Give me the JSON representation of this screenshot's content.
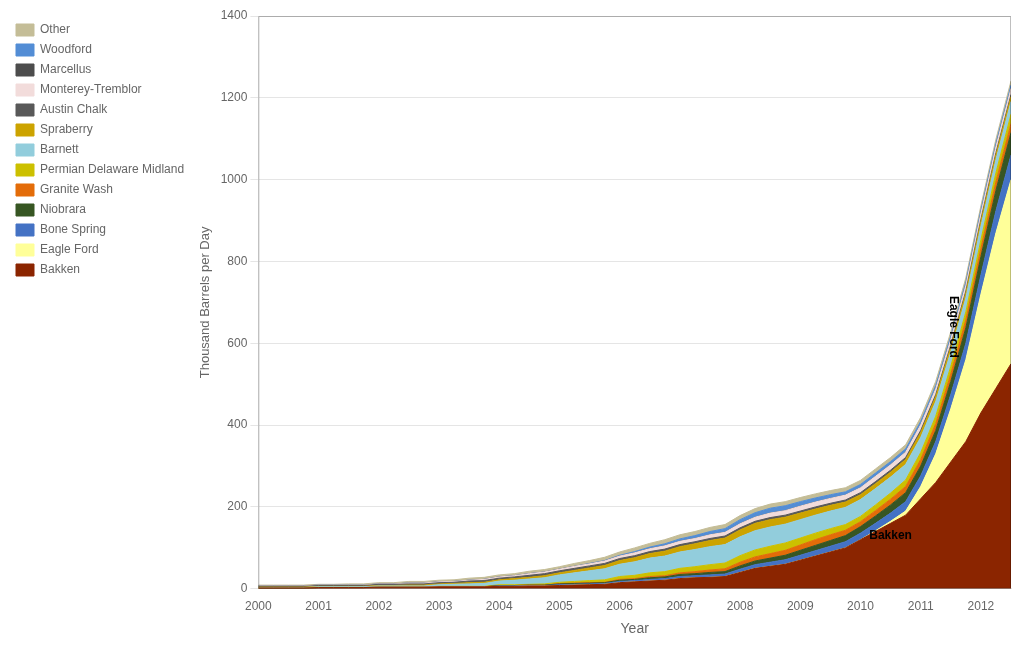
{
  "chart_data": {
    "type": "area",
    "stacked": true,
    "xlabel": "Year",
    "ylabel": "Thousand Barrels per Day",
    "xlim": [
      2000,
      2012.5
    ],
    "ylim": [
      0,
      1400
    ],
    "xticks": [
      2000,
      2001,
      2002,
      2003,
      2004,
      2005,
      2006,
      2007,
      2008,
      2009,
      2010,
      2011,
      2012
    ],
    "yticks": [
      0,
      200,
      400,
      600,
      800,
      1000,
      1200,
      1400
    ],
    "grid": "y",
    "legend": "upper left",
    "x": [
      2000,
      2000.25,
      2000.5,
      2000.75,
      2001,
      2001.25,
      2001.5,
      2001.75,
      2002,
      2002.25,
      2002.5,
      2002.75,
      2003,
      2003.25,
      2003.5,
      2003.75,
      2004,
      2004.25,
      2004.5,
      2004.75,
      2005,
      2005.25,
      2005.5,
      2005.75,
      2006,
      2006.25,
      2006.5,
      2006.75,
      2007,
      2007.25,
      2007.5,
      2007.75,
      2008,
      2008.25,
      2008.5,
      2008.75,
      2009,
      2009.25,
      2009.5,
      2009.75,
      2010,
      2010.25,
      2010.5,
      2010.75,
      2011,
      2011.25,
      2011.5,
      2011.75,
      2012,
      2012.25,
      2012.5
    ],
    "series": [
      {
        "name": "Bakken",
        "color": "#8B2500",
        "values": [
          2,
          2,
          2,
          2,
          3,
          3,
          3,
          3,
          4,
          4,
          4,
          4,
          5,
          5,
          5,
          5,
          6,
          6,
          7,
          7,
          8,
          9,
          10,
          11,
          15,
          17,
          19,
          21,
          25,
          27,
          28,
          30,
          40,
          50,
          55,
          60,
          70,
          80,
          90,
          100,
          120,
          140,
          160,
          180,
          220,
          260,
          310,
          360,
          430,
          490,
          550
        ]
      },
      {
        "name": "Eagle Ford",
        "color": "#FFFF99",
        "values": [
          0,
          0,
          0,
          0,
          0,
          0,
          0,
          0,
          0,
          0,
          0,
          0,
          0,
          0,
          0,
          0,
          0,
          0,
          0,
          0,
          0,
          0,
          0,
          0,
          0,
          0,
          0,
          0,
          0,
          0,
          0,
          0,
          0,
          0,
          0,
          0,
          0,
          0,
          0,
          0,
          0,
          2,
          5,
          10,
          30,
          70,
          130,
          200,
          290,
          380,
          450
        ]
      },
      {
        "name": "Bone Spring",
        "color": "#4472C4",
        "values": [
          0,
          0,
          0,
          0,
          0,
          0,
          0,
          0,
          0,
          0,
          0,
          0,
          0,
          0,
          0,
          0,
          1,
          1,
          1,
          1,
          2,
          2,
          2,
          2,
          3,
          3,
          4,
          4,
          5,
          5,
          6,
          6,
          8,
          9,
          10,
          11,
          12,
          13,
          14,
          15,
          16,
          18,
          20,
          23,
          26,
          30,
          35,
          40,
          47,
          54,
          60
        ]
      },
      {
        "name": "Niobrara",
        "color": "#375623",
        "values": [
          0,
          0,
          0,
          0,
          0,
          0,
          0,
          0,
          0,
          0,
          0,
          0,
          0,
          0,
          0,
          0,
          1,
          1,
          1,
          1,
          2,
          2,
          2,
          2,
          3,
          3,
          4,
          4,
          5,
          5,
          6,
          6,
          8,
          9,
          10,
          11,
          12,
          13,
          14,
          15,
          16,
          18,
          20,
          22,
          24,
          27,
          32,
          38,
          45,
          50,
          55
        ]
      },
      {
        "name": "Granite Wash",
        "color": "#E36C09",
        "values": [
          0,
          0,
          0,
          0,
          0,
          0,
          0,
          0,
          0,
          0,
          0,
          0,
          0,
          0,
          0,
          0,
          0,
          0,
          0,
          0,
          1,
          1,
          1,
          1,
          2,
          2,
          3,
          3,
          4,
          5,
          6,
          7,
          9,
          10,
          11,
          12,
          13,
          14,
          14,
          13,
          12,
          13,
          14,
          15,
          16,
          17,
          18,
          19,
          20,
          21,
          22
        ]
      },
      {
        "name": "Permian Delaware Midland",
        "color": "#CCC000",
        "values": [
          0,
          0,
          0,
          0,
          0,
          0,
          0,
          0,
          0,
          0,
          0,
          0,
          1,
          1,
          1,
          1,
          2,
          2,
          2,
          3,
          3,
          4,
          5,
          6,
          7,
          8,
          9,
          10,
          11,
          12,
          13,
          14,
          16,
          17,
          18,
          18,
          17,
          16,
          15,
          14,
          13,
          14,
          15,
          16,
          17,
          18,
          19,
          20,
          21,
          22,
          23
        ]
      },
      {
        "name": "Barnett",
        "color": "#92CDDC",
        "values": [
          1,
          1,
          1,
          1,
          2,
          2,
          2,
          2,
          3,
          3,
          3,
          3,
          4,
          5,
          6,
          7,
          9,
          11,
          13,
          15,
          18,
          21,
          24,
          27,
          30,
          33,
          36,
          38,
          40,
          42,
          44,
          45,
          46,
          47,
          47,
          46,
          45,
          44,
          43,
          42,
          41,
          40,
          39,
          38,
          37,
          36,
          35,
          34,
          33,
          32,
          31
        ]
      },
      {
        "name": "Spraberry",
        "color": "#CCA300",
        "values": [
          1,
          1,
          1,
          1,
          1,
          1,
          1,
          1,
          1,
          1,
          2,
          2,
          2,
          2,
          3,
          3,
          3,
          4,
          4,
          5,
          5,
          6,
          7,
          8,
          9,
          10,
          11,
          12,
          13,
          14,
          15,
          16,
          17,
          18,
          18,
          17,
          16,
          15,
          14,
          13,
          12,
          12,
          12,
          12,
          12,
          12,
          12,
          12,
          12,
          12,
          12
        ]
      },
      {
        "name": "Austin Chalk",
        "color": "#595959",
        "values": [
          2,
          2,
          2,
          2,
          2,
          2,
          2,
          2,
          3,
          3,
          3,
          3,
          3,
          3,
          4,
          4,
          4,
          4,
          5,
          5,
          5,
          5,
          5,
          5,
          5,
          5,
          5,
          5,
          5,
          5,
          5,
          5,
          5,
          5,
          5,
          5,
          5,
          5,
          5,
          5,
          5,
          5,
          5,
          5,
          5,
          5,
          5,
          5,
          5,
          5,
          5
        ]
      },
      {
        "name": "Monterey-Tremblor",
        "color": "#F2DCDB",
        "values": [
          1,
          1,
          1,
          1,
          1,
          1,
          1,
          1,
          1,
          1,
          2,
          2,
          2,
          2,
          2,
          3,
          3,
          3,
          4,
          4,
          4,
          5,
          5,
          6,
          6,
          7,
          7,
          8,
          8,
          8,
          9,
          9,
          10,
          10,
          11,
          11,
          12,
          12,
          12,
          12,
          12,
          13,
          13,
          13,
          14,
          14,
          14,
          14,
          15,
          15,
          15
        ]
      },
      {
        "name": "Marcellus",
        "color": "#4D4D4D",
        "values": [
          0,
          0,
          0,
          0,
          0,
          0,
          0,
          0,
          0,
          0,
          0,
          0,
          0,
          0,
          0,
          0,
          0,
          0,
          0,
          0,
          0,
          0,
          0,
          0,
          0,
          0,
          0,
          0,
          0,
          0,
          0,
          0,
          0,
          0,
          0,
          0,
          0,
          0,
          0,
          0,
          0,
          0,
          0,
          0,
          0,
          0,
          0,
          0,
          0,
          0,
          0
        ]
      },
      {
        "name": "Woodford",
        "color": "#538DD5",
        "values": [
          0,
          0,
          0,
          0,
          0,
          0,
          0,
          0,
          0,
          0,
          0,
          0,
          0,
          0,
          0,
          0,
          0,
          0,
          0,
          0,
          0,
          0,
          1,
          1,
          2,
          3,
          4,
          5,
          6,
          7,
          8,
          9,
          10,
          11,
          12,
          12,
          11,
          10,
          9,
          8,
          8,
          8,
          8,
          8,
          8,
          8,
          8,
          8,
          8,
          8,
          8
        ]
      },
      {
        "name": "Other",
        "color": "#C4BD97",
        "values": [
          2,
          2,
          2,
          2,
          2,
          2,
          3,
          3,
          3,
          3,
          4,
          4,
          4,
          4,
          5,
          5,
          5,
          5,
          6,
          6,
          6,
          7,
          7,
          8,
          8,
          9,
          9,
          10,
          10,
          10,
          10,
          10,
          10,
          10,
          10,
          10,
          10,
          10,
          10,
          10,
          10,
          10,
          10,
          10,
          10,
          10,
          10,
          10,
          10,
          10,
          10
        ]
      }
    ],
    "annotations": [
      {
        "text": "Bakken",
        "x": 2010.5,
        "y": 130
      },
      {
        "text": "Eagle Ford",
        "x": 2011.55,
        "y": 640
      }
    ]
  }
}
